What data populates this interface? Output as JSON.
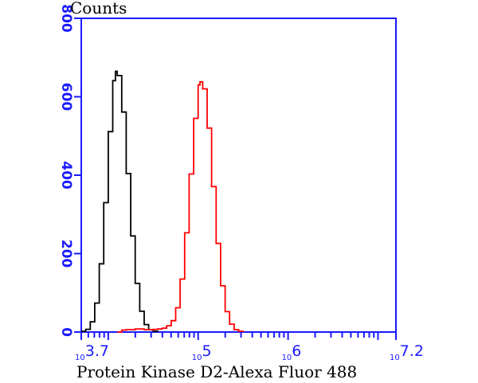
{
  "chart_data": {
    "type": "line",
    "title": "",
    "xlabel": "Protein Kinase D2-Alexa Fluor 488",
    "ylabel": "Counts",
    "x_scale": "log10",
    "xlim": [
      3.7,
      7.2
    ],
    "ylim": [
      0,
      800
    ],
    "y_ticks": [
      0,
      200,
      400,
      600,
      800
    ],
    "x_tick_labels": [
      {
        "exp": 3.7,
        "base": "10",
        "power": "3.7"
      },
      {
        "exp": 5,
        "base": "10",
        "power": "5"
      },
      {
        "exp": 6,
        "base": "10",
        "power": "6"
      },
      {
        "exp": 7.2,
        "base": "10",
        "power": "7.2"
      }
    ],
    "grid": false,
    "axis_color": "#1a1aff",
    "series": [
      {
        "color": "#000000",
        "x_log10": [
          3.7,
          3.75,
          3.8,
          3.85,
          3.9,
          3.95,
          4.0,
          4.05,
          4.08,
          4.1,
          4.15,
          4.2,
          4.25,
          4.3,
          4.35,
          4.4,
          4.45,
          4.5,
          4.55
        ],
        "y": [
          2,
          7,
          26,
          74,
          174,
          330,
          511,
          641,
          665,
          654,
          561,
          404,
          245,
          124,
          53,
          19,
          6,
          2,
          0
        ]
      },
      {
        "color": "#ff0000",
        "x_log10": [
          4.1,
          4.15,
          4.2,
          4.3,
          4.4,
          4.5,
          4.55,
          4.6,
          4.65,
          4.7,
          4.75,
          4.8,
          4.85,
          4.9,
          4.95,
          5.0,
          5.02,
          5.05,
          5.1,
          5.15,
          5.2,
          5.25,
          5.3,
          5.35,
          5.4,
          5.45,
          5.5
        ],
        "y": [
          0,
          5,
          6,
          8,
          6,
          7,
          8,
          10,
          16,
          29,
          62,
          135,
          253,
          403,
          545,
          630,
          638,
          620,
          520,
          371,
          226,
          118,
          52,
          20,
          6,
          2,
          0
        ]
      }
    ]
  }
}
